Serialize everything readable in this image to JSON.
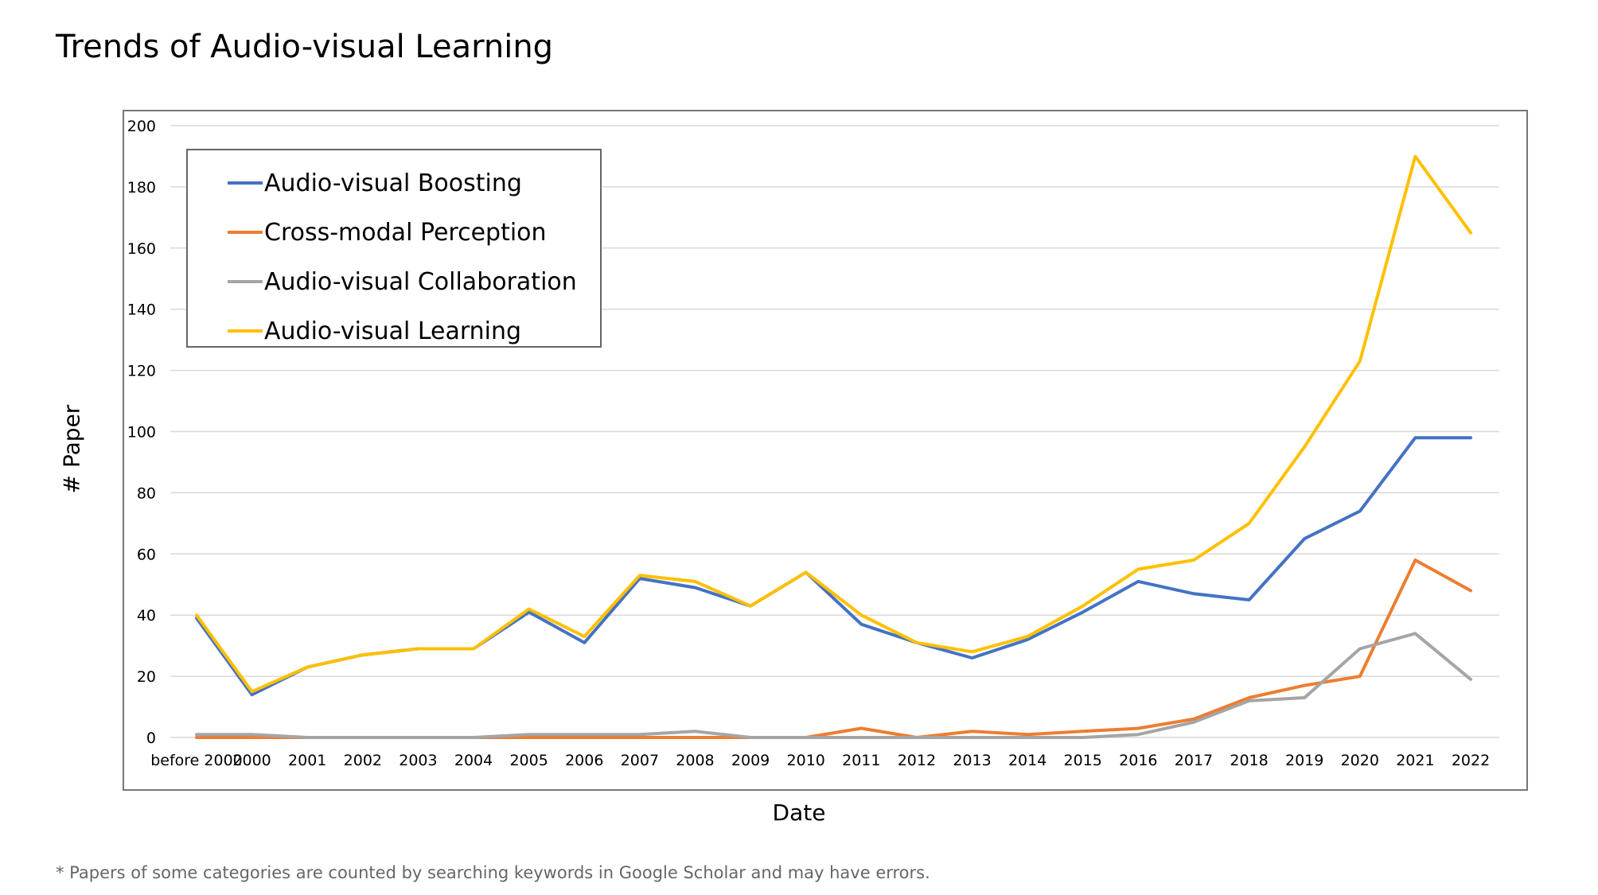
{
  "title": "Trends of Audio-visual Learning",
  "footnote": "* Papers of some categories are counted by searching keywords in Google Scholar and may have errors.",
  "chart_data": {
    "type": "line",
    "title": "Trends of Audio-visual Learning",
    "xlabel": "Date",
    "ylabel": "# Paper",
    "ylim": [
      0,
      200
    ],
    "yticks": [
      0,
      20,
      40,
      60,
      80,
      100,
      120,
      140,
      160,
      180,
      200
    ],
    "grid": true,
    "legend_position": "top-left",
    "categories": [
      "before 2000",
      "2000",
      "2001",
      "2002",
      "2003",
      "2004",
      "2005",
      "2006",
      "2007",
      "2008",
      "2009",
      "2010",
      "2011",
      "2012",
      "2013",
      "2014",
      "2015",
      "2016",
      "2017",
      "2018",
      "2019",
      "2020",
      "2021",
      "2022"
    ],
    "series": [
      {
        "name": "Audio-visual Boosting",
        "color": "#4472C4",
        "values": [
          39,
          14,
          23,
          27,
          29,
          29,
          41,
          31,
          52,
          49,
          43,
          54,
          37,
          31,
          26,
          32,
          41,
          51,
          47,
          45,
          65,
          74,
          98,
          98
        ]
      },
      {
        "name": "Cross-modal Perception",
        "color": "#ED7D31",
        "values": [
          0,
          0,
          0,
          0,
          0,
          0,
          0,
          0,
          0,
          0,
          0,
          0,
          3,
          0,
          2,
          1,
          2,
          3,
          6,
          13,
          17,
          20,
          58,
          48
        ]
      },
      {
        "name": "Audio-visual Collaboration",
        "color": "#A5A5A5",
        "values": [
          1,
          1,
          0,
          0,
          0,
          0,
          1,
          1,
          1,
          2,
          0,
          0,
          0,
          0,
          0,
          0,
          0,
          1,
          5,
          12,
          13,
          29,
          34,
          19
        ]
      },
      {
        "name": "Audio-visual Learning",
        "color": "#FFC000",
        "values": [
          40,
          15,
          23,
          27,
          29,
          29,
          42,
          33,
          53,
          51,
          43,
          54,
          40,
          31,
          28,
          33,
          43,
          55,
          58,
          70,
          95,
          123,
          190,
          165
        ]
      }
    ]
  }
}
